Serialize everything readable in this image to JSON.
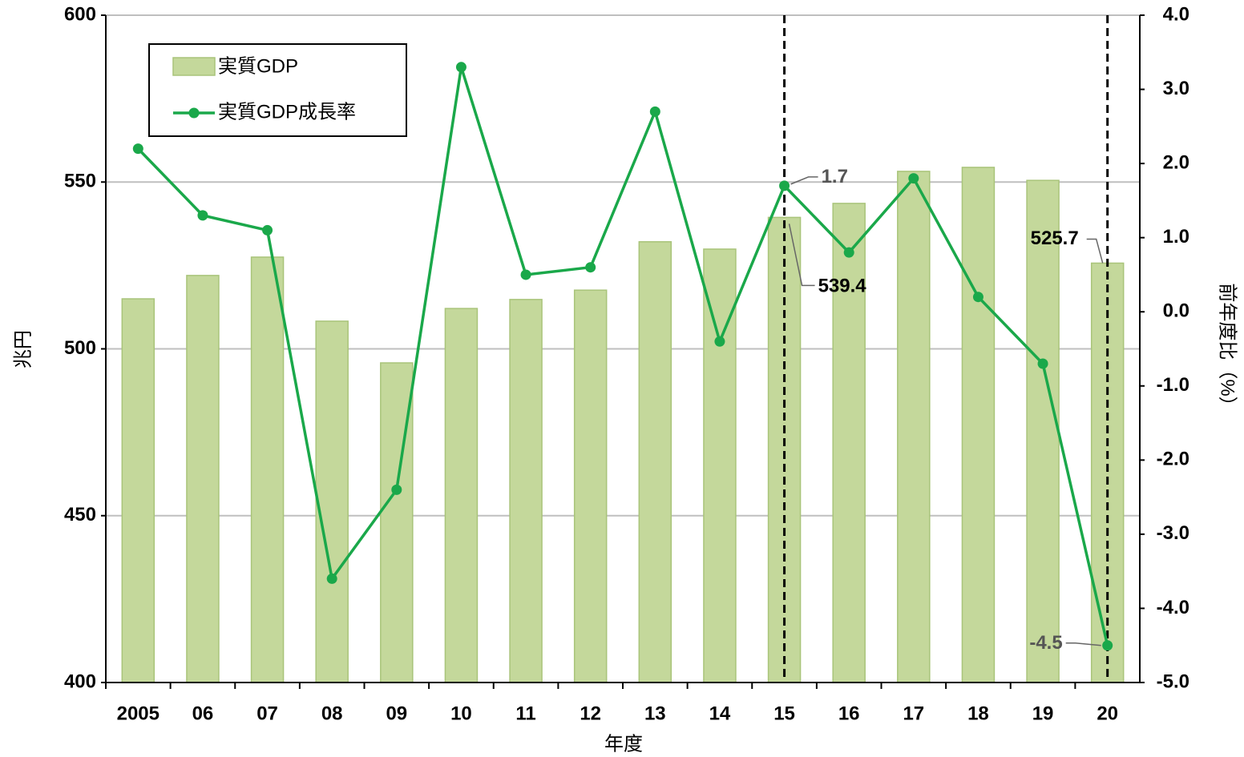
{
  "chart_data": {
    "type": "bar+line",
    "categories": [
      "2005",
      "06",
      "07",
      "08",
      "09",
      "10",
      "11",
      "12",
      "13",
      "14",
      "15",
      "16",
      "17",
      "18",
      "19",
      "20"
    ],
    "series": [
      {
        "name": "実質GDP",
        "type": "bar",
        "color": "#c4d89b",
        "axis": "y",
        "values": [
          515,
          522,
          527.5,
          508.3,
          495.8,
          512.1,
          514.8,
          517.6,
          532.1,
          529.9,
          539.4,
          543.6,
          553.2,
          554.4,
          550.5,
          525.7
        ],
        "value_labels": [
          null,
          null,
          null,
          null,
          null,
          null,
          null,
          null,
          null,
          null,
          "539.4",
          null,
          null,
          null,
          null,
          "525.7"
        ]
      },
      {
        "name": "実質GDP成長率",
        "type": "line",
        "color": "#1aa84a",
        "axis": "y2",
        "values": [
          2.2,
          1.3,
          1.1,
          -3.6,
          -2.4,
          3.3,
          0.5,
          0.6,
          2.7,
          -0.4,
          1.7,
          0.8,
          1.8,
          0.2,
          -0.7,
          -4.5
        ],
        "value_labels": [
          null,
          null,
          null,
          null,
          null,
          null,
          null,
          null,
          null,
          null,
          "1.7",
          null,
          null,
          null,
          null,
          "-4.5"
        ]
      }
    ],
    "xlabel": "年度",
    "ylabel": "兆円",
    "y2label": "前年度比（%）",
    "ylim": [
      400,
      600
    ],
    "yticks": [
      400,
      450,
      500,
      550,
      600
    ],
    "y2lim": [
      -5,
      4
    ],
    "y2ticks": [
      {
        "value": 4,
        "label": "4.0"
      },
      {
        "value": 3,
        "label": "3.0"
      },
      {
        "value": 2,
        "label": "2.0"
      },
      {
        "value": 1,
        "label": "1.0"
      },
      {
        "value": 0,
        "label": "0.0"
      },
      {
        "value": -1,
        "label": "-1.0"
      },
      {
        "value": -2,
        "label": "-2.0"
      },
      {
        "value": -3,
        "label": "-3.0"
      },
      {
        "value": -4,
        "label": "-4.0"
      },
      {
        "value": -5,
        "label": "-5.0"
      }
    ],
    "grid": true,
    "legend": "upper left"
  }
}
